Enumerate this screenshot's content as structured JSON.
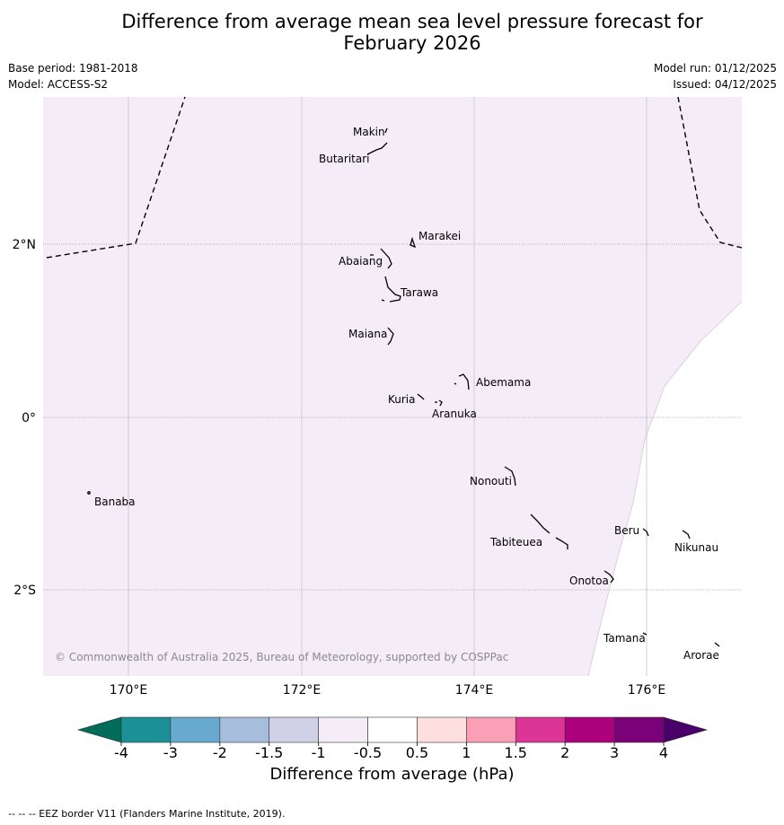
{
  "title_line1": "Difference from average mean sea level pressure forecast for",
  "title_line2": "February 2026",
  "meta": {
    "base_period": "Base period: 1981-2018",
    "model": "Model: ACCESS-S2",
    "model_run": "Model run: 01/12/2025",
    "issued": "Issued: 04/12/2025"
  },
  "map": {
    "lat_ticks": [
      "2°N",
      "0°",
      "2°S"
    ],
    "lon_ticks": [
      "170°E",
      "172°E",
      "174°E",
      "176°E"
    ],
    "places": [
      "Makin",
      "Butaritari",
      "Marakei",
      "Abaiang",
      "Tarawa",
      "Maiana",
      "Abemama",
      "Kuria",
      "Aranuka",
      "Banaba",
      "Nonouti",
      "Tabiteuea",
      "Beru",
      "Nikunau",
      "Onotoa",
      "Tamana",
      "Arorae"
    ],
    "copyright": "© Commonwealth of Australia 2025, Bureau of Meteorology, supported by COSPPac",
    "background_color": "#f4ecf6"
  },
  "colorbar": {
    "title": "Difference from average (hPa)",
    "tick_labels": [
      "-4",
      "-3",
      "-2",
      "-1.5",
      "-1",
      "-0.5",
      "0.5",
      "1",
      "1.5",
      "2",
      "3",
      "4"
    ],
    "colors": [
      "#1b9196",
      "#67a9cf",
      "#a6bddb",
      "#d0d1e6",
      "#f4ecf6",
      "#ffffff",
      "#fde0dd",
      "#fa9fb5",
      "#dd3497",
      "#ae017e",
      "#7a0177"
    ],
    "low_extend_color": "#016c59",
    "high_extend_color": "#49006a"
  },
  "footnote": "--  --  -- EEZ border V11 (Flanders Marine Institute, 2019)."
}
